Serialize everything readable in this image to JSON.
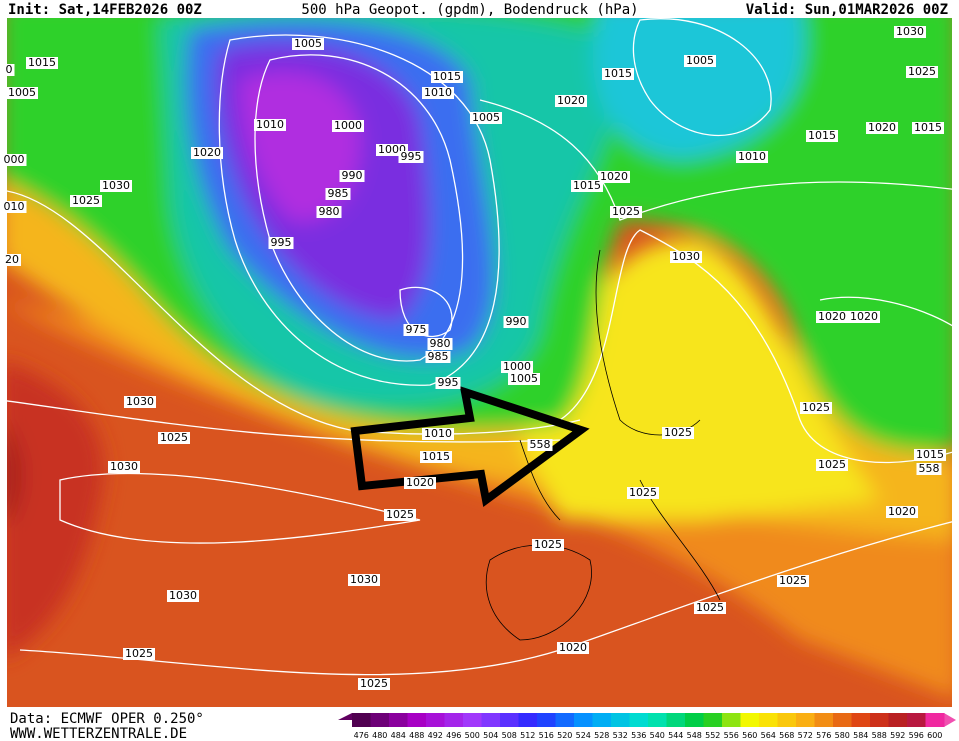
{
  "header": {
    "init": "Init: Sat,14FEB2026 00Z",
    "title": "500 hPa Geopot. (gpdm), Bodendruck (hPa)",
    "valid": "Valid: Sun,01MAR2026 00Z"
  },
  "footer": {
    "data": "Data: ECMWF OPER 0.250°",
    "site": "WWW.WETTERZENTRALE.DE"
  },
  "legend": {
    "labels": [
      "476",
      "480",
      "484",
      "488",
      "492",
      "496",
      "500",
      "504",
      "508",
      "512",
      "516",
      "520",
      "524",
      "528",
      "532",
      "536",
      "540",
      "544",
      "548",
      "552",
      "556",
      "560",
      "564",
      "568",
      "572",
      "576",
      "580",
      "584",
      "588",
      "592",
      "596",
      "600"
    ]
  },
  "isobar_labels": [
    "0",
    "1015",
    "1005",
    "000",
    "010",
    "20",
    "1005",
    "1015",
    "1010",
    "1005",
    "1010",
    "1000",
    "1000",
    "995",
    "1020",
    "990",
    "985",
    "980",
    "995",
    "1030",
    "1025",
    "975",
    "980",
    "985",
    "990",
    "1000",
    "1005",
    "995",
    "1010",
    "1015",
    "1020",
    "558",
    "1030",
    "1025",
    "1030",
    "1025",
    "1025",
    "1030",
    "1030",
    "1025",
    "1025",
    "1020",
    "1025",
    "1025",
    "1025",
    "1025",
    "1025",
    "1025",
    "1020",
    "1015",
    "558",
    "1020",
    "1020",
    "1030",
    "1025",
    "1020",
    "1015",
    "1020",
    "1015",
    "1005",
    "1030",
    "1025",
    "1015",
    "1020",
    "1015",
    "1010"
  ]
}
